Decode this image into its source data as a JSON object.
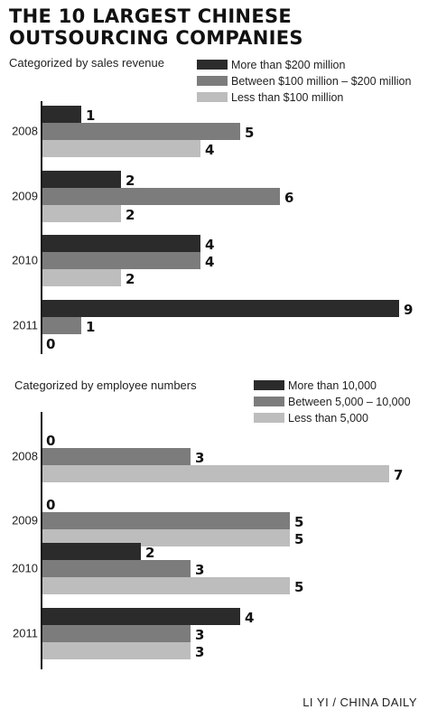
{
  "title": "THE 10 LARGEST CHINESE OUTSOURCING COMPANIES",
  "credit": "LI YI / CHINA DAILY",
  "colors": {
    "dark": "#2b2b2b",
    "mid": "#7c7c7c",
    "light": "#bdbdbd",
    "axis": "#111111"
  },
  "chart_data": [
    {
      "type": "bar",
      "orientation": "horizontal",
      "title": "Categorized by sales revenue",
      "categories": [
        "2008",
        "2009",
        "2010",
        "2011"
      ],
      "series": [
        {
          "name": "More than $200 million",
          "values": [
            1,
            2,
            4,
            9
          ]
        },
        {
          "name": "Between $100 million – $200 million",
          "values": [
            5,
            6,
            4,
            1
          ]
        },
        {
          "name": "Less than $100 million",
          "values": [
            4,
            2,
            2,
            0
          ]
        }
      ],
      "xlim": [
        0,
        9
      ],
      "legend": "top-right",
      "grid": false
    },
    {
      "type": "bar",
      "orientation": "horizontal",
      "title": "Categorized by employee numbers",
      "categories": [
        "2008",
        "2009",
        "2010",
        "2011"
      ],
      "series": [
        {
          "name": "More than 10,000",
          "values": [
            0,
            0,
            2,
            4
          ]
        },
        {
          "name": "Between 5,000 – 10,000",
          "values": [
            3,
            5,
            3,
            3
          ]
        },
        {
          "name": "Less than 5,000",
          "values": [
            7,
            5,
            5,
            3
          ]
        }
      ],
      "xlim": [
        0,
        7
      ],
      "legend": "top-right",
      "grid": false
    }
  ]
}
